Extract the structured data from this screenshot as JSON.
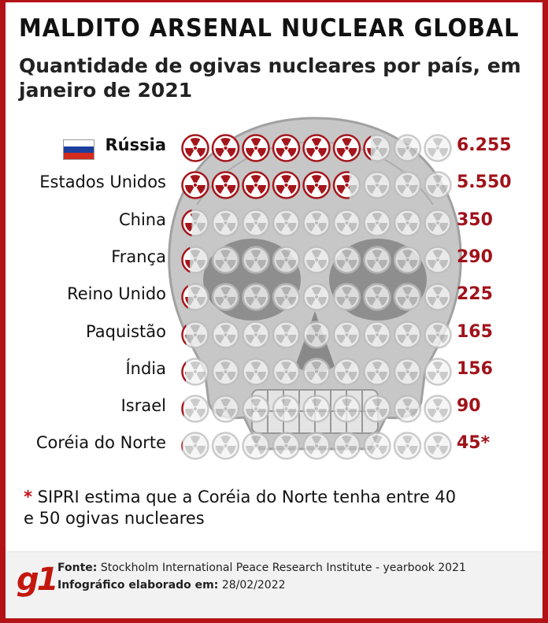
{
  "title": "MALDITO ARSENAL NUCLEAR GLOBAL",
  "subtitle": "Quantidade de ogivas nucleares por país, em janeiro de 2021",
  "chart_data": {
    "type": "bar",
    "title": "MALDITO ARSENAL NUCLEAR GLOBAL",
    "subtitle": "Quantidade de ogivas nucleares por país, em janeiro de 2021",
    "categories": [
      "Rússia",
      "Estados Unidos",
      "China",
      "França",
      "Reino Unido",
      "Paquistão",
      "Índia",
      "Israel",
      "Coréia do Norte"
    ],
    "values": [
      6255,
      5550,
      350,
      290,
      225,
      165,
      156,
      90,
      45
    ],
    "value_labels": [
      "6.255",
      "5.550",
      "350",
      "290",
      "225",
      "165",
      "156",
      "90",
      "45*"
    ],
    "max_icons": 9,
    "icon_name": "radiation-icon",
    "colors": {
      "filled": "#a5161c",
      "empty": "#bdbdbd",
      "value": "#a0121a"
    }
  },
  "note": {
    "asterisk": "*",
    "text": "SIPRI estima que a Coréia do Norte tenha entre 40 e 50 ogivas nucleares"
  },
  "footer": {
    "logo": "g1",
    "source_label": "Fonte:",
    "source_text": "Stockholm International Peace Research Institute - yearbook 2021",
    "date_label": "Infográfico elaborado em:",
    "date_text": "28/02/2022"
  }
}
